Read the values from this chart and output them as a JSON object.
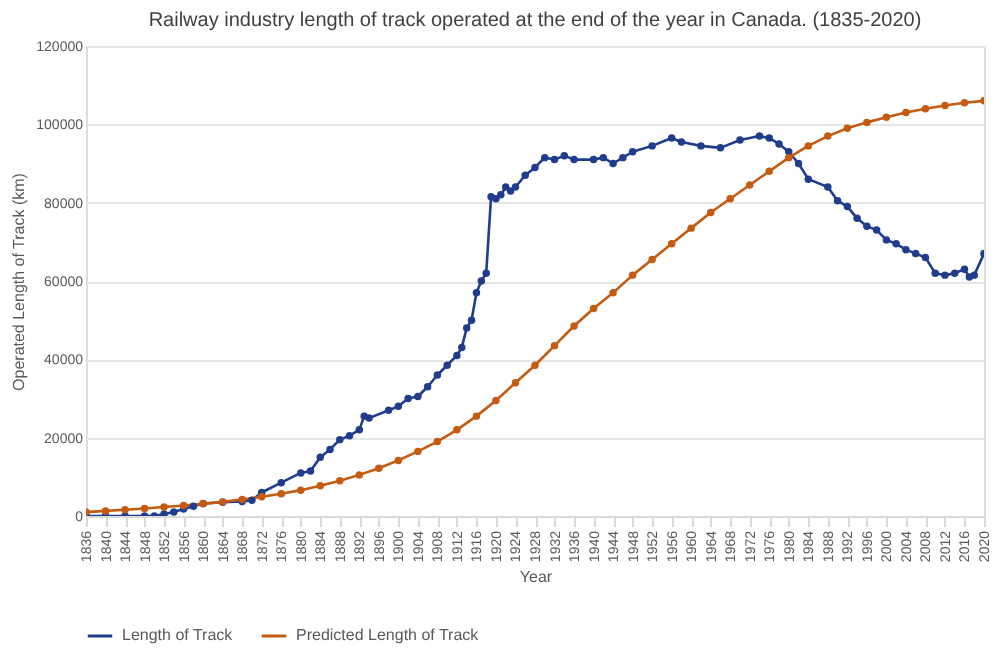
{
  "chart_data": {
    "type": "line",
    "title": "Railway industry length of track operated at the end of the year in Canada. (1835-2020)",
    "xlabel": "Year",
    "ylabel": "Operated Length of Track (km)",
    "xlim": [
      1836,
      2020
    ],
    "xticks": [
      1836,
      1840,
      1844,
      1848,
      1852,
      1856,
      1860,
      1864,
      1868,
      1872,
      1876,
      1880,
      1884,
      1888,
      1892,
      1896,
      1900,
      1904,
      1908,
      1912,
      1916,
      1920,
      1924,
      1928,
      1932,
      1936,
      1940,
      1944,
      1948,
      1952,
      1956,
      1960,
      1964,
      1968,
      1972,
      1976,
      1980,
      1984,
      1988,
      1992,
      1996,
      2000,
      2004,
      2008,
      2012,
      2016,
      2020
    ],
    "ylim": [
      0,
      120000
    ],
    "yticks": [
      0,
      20000,
      40000,
      60000,
      80000,
      100000,
      120000
    ],
    "grid": "y",
    "legend": "bottom",
    "marker": "circle",
    "line_style": "solid",
    "series": [
      {
        "name": "Length of Track",
        "color": "#1f3d8c",
        "x": [
          1836,
          1840,
          1844,
          1848,
          1850,
          1852,
          1854,
          1856,
          1858,
          1860,
          1864,
          1868,
          1870,
          1872,
          1876,
          1880,
          1882,
          1884,
          1886,
          1888,
          1890,
          1892,
          1893,
          1894,
          1898,
          1900,
          1902,
          1904,
          1906,
          1908,
          1910,
          1912,
          1913,
          1914,
          1915,
          1916,
          1917,
          1918,
          1919,
          1920,
          1921,
          1922,
          1923,
          1924,
          1926,
          1928,
          1930,
          1932,
          1934,
          1936,
          1940,
          1942,
          1944,
          1946,
          1948,
          1952,
          1956,
          1958,
          1962,
          1966,
          1970,
          1974,
          1976,
          1978,
          1980,
          1982,
          1984,
          1988,
          1990,
          1992,
          1994,
          1996,
          1998,
          2000,
          2002,
          2004,
          2006,
          2008,
          2010,
          2012,
          2014,
          2016,
          2017,
          2018,
          2020
        ],
        "values": [
          0,
          0,
          0,
          0,
          0,
          500,
          1000,
          1800,
          2500,
          3200,
          3500,
          3700,
          4000,
          6000,
          8500,
          11000,
          11500,
          15000,
          17000,
          19500,
          20500,
          22000,
          25500,
          25000,
          27000,
          28000,
          30000,
          30500,
          33000,
          36000,
          38500,
          41000,
          43000,
          48000,
          50000,
          57000,
          60000,
          62000,
          81500,
          81000,
          82000,
          84000,
          83000,
          84000,
          87000,
          89000,
          91500,
          91000,
          92000,
          91000,
          91000,
          91500,
          90000,
          91500,
          93000,
          94500,
          96500,
          95500,
          94500,
          94000,
          96000,
          97000,
          96500,
          95000,
          93000,
          90000,
          86000,
          84000,
          80500,
          79000,
          76000,
          74000,
          73000,
          70500,
          69500,
          68000,
          67000,
          66000,
          62000,
          61500,
          62000,
          63000,
          61000,
          61500,
          67000
        ]
      },
      {
        "name": "Predicted Length of Track",
        "color": "#c55a11",
        "x": [
          1836,
          1840,
          1844,
          1848,
          1852,
          1856,
          1860,
          1864,
          1868,
          1872,
          1876,
          1880,
          1884,
          1888,
          1892,
          1896,
          1900,
          1904,
          1908,
          1912,
          1916,
          1920,
          1924,
          1928,
          1932,
          1936,
          1940,
          1944,
          1948,
          1952,
          1956,
          1960,
          1964,
          1968,
          1972,
          1976,
          1980,
          1984,
          1988,
          1992,
          1996,
          2000,
          2004,
          2008,
          2012,
          2016,
          2020
        ],
        "values": [
          1000,
          1300,
          1600,
          1900,
          2300,
          2700,
          3100,
          3600,
          4200,
          4900,
          5700,
          6600,
          7700,
          9000,
          10500,
          12200,
          14200,
          16500,
          19000,
          22000,
          25500,
          29500,
          34000,
          38500,
          43500,
          48500,
          53000,
          57000,
          61500,
          65500,
          69500,
          73500,
          77500,
          81000,
          84500,
          88000,
          91500,
          94500,
          97000,
          99000,
          100500,
          101800,
          103000,
          104000,
          104800,
          105500,
          106000
        ]
      }
    ]
  }
}
